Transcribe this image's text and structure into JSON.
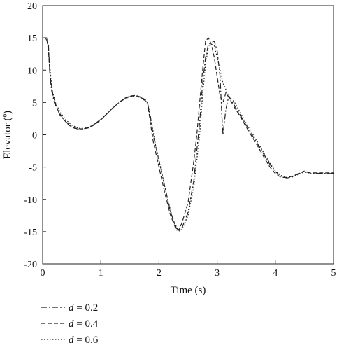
{
  "chart_data": {
    "type": "line",
    "title": "",
    "xlabel": "Time (s)",
    "ylabel": "Elevator (º)",
    "xlim": [
      0,
      5
    ],
    "ylim": [
      -20,
      20
    ],
    "xticks": [
      0,
      1,
      2,
      3,
      4,
      5
    ],
    "yticks": [
      -20,
      -15,
      -10,
      -5,
      0,
      5,
      10,
      15,
      20
    ],
    "grid": false,
    "legend_position": "bottom-left",
    "series": [
      {
        "name": "d = 0.2",
        "var": "d",
        "value_label": "= 0.2",
        "style": "dashdot",
        "color": "#222222",
        "points": [
          [
            0,
            15
          ],
          [
            0.05,
            15
          ],
          [
            0.1,
            14
          ],
          [
            0.12,
            10
          ],
          [
            0.15,
            7
          ],
          [
            0.2,
            5
          ],
          [
            0.3,
            3
          ],
          [
            0.4,
            2
          ],
          [
            0.5,
            1.2
          ],
          [
            0.6,
            0.9
          ],
          [
            0.7,
            0.9
          ],
          [
            0.8,
            1.2
          ],
          [
            0.9,
            1.7
          ],
          [
            1.0,
            2.4
          ],
          [
            1.1,
            3.2
          ],
          [
            1.2,
            4.1
          ],
          [
            1.3,
            4.9
          ],
          [
            1.4,
            5.5
          ],
          [
            1.5,
            5.9
          ],
          [
            1.6,
            6.1
          ],
          [
            1.7,
            5.7
          ],
          [
            1.8,
            5
          ],
          [
            1.85,
            3
          ],
          [
            1.9,
            0
          ],
          [
            2.0,
            -4
          ],
          [
            2.1,
            -8
          ],
          [
            2.2,
            -12
          ],
          [
            2.3,
            -14.5
          ],
          [
            2.35,
            -14.8
          ],
          [
            2.4,
            -14.3
          ],
          [
            2.5,
            -12
          ],
          [
            2.6,
            -7
          ],
          [
            2.7,
            2
          ],
          [
            2.75,
            8
          ],
          [
            2.8,
            12
          ],
          [
            2.85,
            14
          ],
          [
            2.95,
            14.5
          ],
          [
            3.0,
            13
          ],
          [
            3.05,
            9
          ],
          [
            3.08,
            3
          ],
          [
            3.1,
            0
          ],
          [
            3.15,
            4
          ],
          [
            3.2,
            6
          ],
          [
            3.3,
            4.5
          ],
          [
            3.4,
            3
          ],
          [
            3.5,
            1.5
          ],
          [
            3.6,
            0
          ],
          [
            3.7,
            -1.5
          ],
          [
            3.8,
            -3
          ],
          [
            3.9,
            -4.5
          ],
          [
            4.0,
            -5.7
          ],
          [
            4.1,
            -6.4
          ],
          [
            4.2,
            -6.7
          ],
          [
            4.3,
            -6.5
          ],
          [
            4.4,
            -6
          ],
          [
            4.5,
            -5.7
          ],
          [
            4.6,
            -5.9
          ],
          [
            4.8,
            -6
          ],
          [
            5.0,
            -6
          ]
        ]
      },
      {
        "name": "d = 0.4",
        "var": "d",
        "value_label": "= 0.4",
        "style": "dashed",
        "color": "#222222",
        "points": [
          [
            0,
            15
          ],
          [
            0.07,
            15
          ],
          [
            0.1,
            13
          ],
          [
            0.13,
            9
          ],
          [
            0.18,
            6
          ],
          [
            0.25,
            4
          ],
          [
            0.35,
            2.5
          ],
          [
            0.45,
            1.5
          ],
          [
            0.55,
            1
          ],
          [
            0.7,
            0.9
          ],
          [
            0.8,
            1.1
          ],
          [
            0.9,
            1.6
          ],
          [
            1.0,
            2.3
          ],
          [
            1.1,
            3.2
          ],
          [
            1.2,
            4.1
          ],
          [
            1.3,
            4.9
          ],
          [
            1.4,
            5.6
          ],
          [
            1.5,
            6
          ],
          [
            1.6,
            6.1
          ],
          [
            1.7,
            5.8
          ],
          [
            1.8,
            5.2
          ],
          [
            1.85,
            2
          ],
          [
            1.9,
            -1
          ],
          [
            2.0,
            -5
          ],
          [
            2.1,
            -9
          ],
          [
            2.2,
            -12.5
          ],
          [
            2.3,
            -14.8
          ],
          [
            2.35,
            -14.6
          ],
          [
            2.4,
            -13.5
          ],
          [
            2.5,
            -10.5
          ],
          [
            2.6,
            -4
          ],
          [
            2.65,
            0
          ],
          [
            2.7,
            5
          ],
          [
            2.75,
            10
          ],
          [
            2.8,
            14.5
          ],
          [
            2.85,
            15
          ],
          [
            2.9,
            14
          ],
          [
            2.95,
            12
          ],
          [
            3.0,
            9
          ],
          [
            3.05,
            6
          ],
          [
            3.1,
            5
          ],
          [
            3.15,
            6.5
          ],
          [
            3.2,
            5.8
          ],
          [
            3.3,
            4.2
          ],
          [
            3.4,
            2.8
          ],
          [
            3.5,
            1.2
          ],
          [
            3.6,
            -0.3
          ],
          [
            3.7,
            -1.8
          ],
          [
            3.8,
            -3.4
          ],
          [
            3.9,
            -4.9
          ],
          [
            4.0,
            -6
          ],
          [
            4.1,
            -6.6
          ],
          [
            4.2,
            -6.6
          ],
          [
            4.3,
            -6.4
          ],
          [
            4.4,
            -6
          ],
          [
            4.5,
            -5.6
          ],
          [
            4.6,
            -5.9
          ],
          [
            4.8,
            -5.9
          ],
          [
            5.0,
            -5.9
          ]
        ]
      },
      {
        "name": "d = 0.6",
        "var": "d",
        "value_label": "= 0.6",
        "style": "dotted",
        "color": "#222222",
        "points": [
          [
            0,
            15
          ],
          [
            0.08,
            15
          ],
          [
            0.12,
            11
          ],
          [
            0.16,
            7
          ],
          [
            0.22,
            5
          ],
          [
            0.3,
            3.5
          ],
          [
            0.4,
            2.3
          ],
          [
            0.5,
            1.5
          ],
          [
            0.6,
            1.1
          ],
          [
            0.7,
            1
          ],
          [
            0.8,
            1.2
          ],
          [
            0.9,
            1.7
          ],
          [
            1.0,
            2.4
          ],
          [
            1.1,
            3.2
          ],
          [
            1.2,
            4.1
          ],
          [
            1.3,
            4.9
          ],
          [
            1.4,
            5.6
          ],
          [
            1.5,
            5.9
          ],
          [
            1.6,
            6
          ],
          [
            1.7,
            5.7
          ],
          [
            1.8,
            5
          ],
          [
            1.87,
            2
          ],
          [
            1.95,
            -2
          ],
          [
            2.05,
            -6
          ],
          [
            2.15,
            -10
          ],
          [
            2.25,
            -13.5
          ],
          [
            2.35,
            -14.9
          ],
          [
            2.4,
            -14.6
          ],
          [
            2.5,
            -12.5
          ],
          [
            2.6,
            -8
          ],
          [
            2.7,
            0
          ],
          [
            2.75,
            6
          ],
          [
            2.8,
            11
          ],
          [
            2.85,
            13.5
          ],
          [
            2.9,
            14
          ],
          [
            2.95,
            13.8
          ],
          [
            3.0,
            12
          ],
          [
            3.05,
            10
          ],
          [
            3.1,
            8
          ],
          [
            3.2,
            6
          ],
          [
            3.3,
            5
          ],
          [
            3.4,
            3.4
          ],
          [
            3.5,
            1.8
          ],
          [
            3.6,
            0.3
          ],
          [
            3.7,
            -1.2
          ],
          [
            3.8,
            -2.8
          ],
          [
            3.9,
            -4.3
          ],
          [
            4.0,
            -5.6
          ],
          [
            4.1,
            -6.3
          ],
          [
            4.2,
            -6.6
          ],
          [
            4.3,
            -6.5
          ],
          [
            4.4,
            -6.1
          ],
          [
            4.5,
            -5.8
          ],
          [
            4.6,
            -6
          ],
          [
            4.8,
            -6
          ],
          [
            5.0,
            -6
          ]
        ]
      }
    ]
  }
}
